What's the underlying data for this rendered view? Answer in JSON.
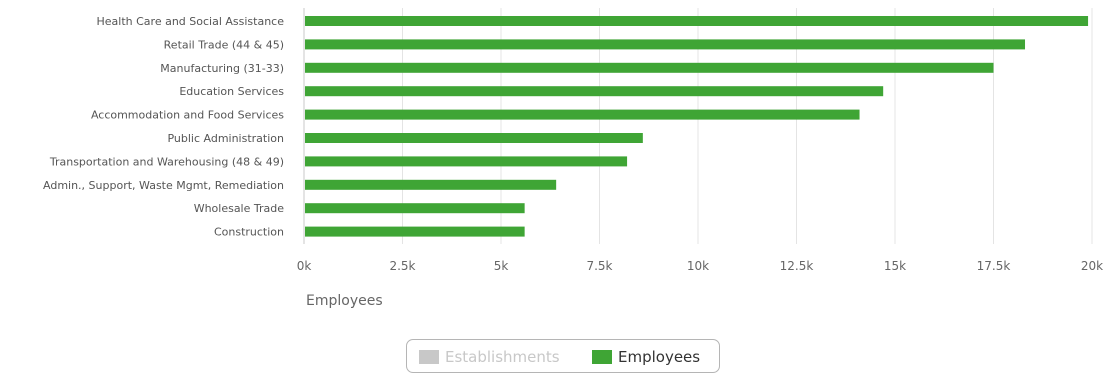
{
  "chart_data": {
    "type": "bar",
    "orientation": "horizontal",
    "categories": [
      "Health Care and Social Assistance",
      "Retail Trade (44 & 45)",
      "Manufacturing (31-33)",
      "Education Services",
      "Accommodation and Food Services",
      "Public Administration",
      "Transportation and Warehousing (48 & 49)",
      "Admin., Support, Waste Mgmt, Remediation",
      "Wholesale Trade",
      "Construction"
    ],
    "series": [
      {
        "name": "Employees",
        "color": "#3fa535",
        "values": [
          19900,
          18300,
          17500,
          14700,
          14100,
          8600,
          8200,
          6400,
          5600,
          5600
        ]
      }
    ],
    "xlabel": "Employees",
    "xlim": [
      0,
      20000
    ],
    "x_ticks": [
      "0k",
      "2.5k",
      "5k",
      "7.5k",
      "10k",
      "12.5k",
      "15k",
      "17.5k",
      "20k"
    ],
    "grid": true,
    "legend_position": "bottom-center"
  },
  "legend": {
    "items": [
      {
        "label": "Establishments",
        "color": "#c8c8c8",
        "active": false
      },
      {
        "label": "Employees",
        "color": "#3fa535",
        "active": true
      }
    ]
  }
}
